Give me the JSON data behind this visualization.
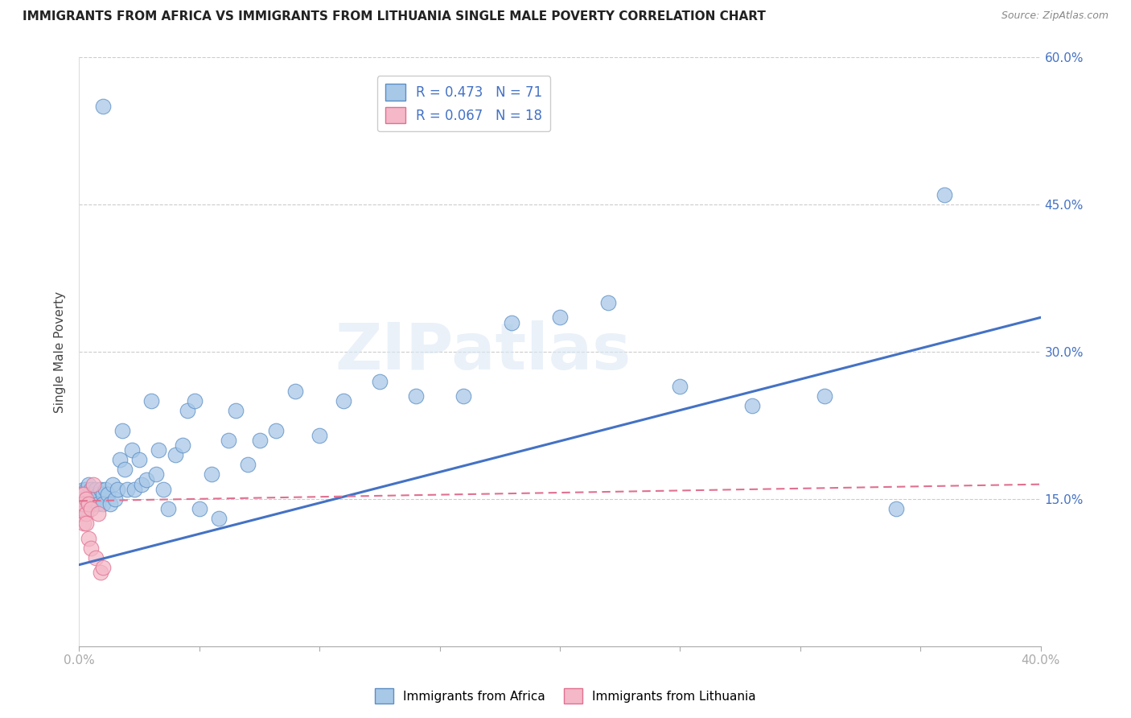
{
  "title": "IMMIGRANTS FROM AFRICA VS IMMIGRANTS FROM LITHUANIA SINGLE MALE POVERTY CORRELATION CHART",
  "source": "Source: ZipAtlas.com",
  "ylabel": "Single Male Poverty",
  "xlim": [
    0.0,
    0.4
  ],
  "ylim": [
    0.0,
    0.6
  ],
  "color_africa": "#a8c8e8",
  "color_africa_edge": "#5b8ec4",
  "color_lithuania": "#f4b8c8",
  "color_lithuania_edge": "#e07090",
  "color_africa_line": "#4472c4",
  "color_lithuania_line": "#e07090",
  "background_color": "#ffffff",
  "africa_x": [
    0.001,
    0.001,
    0.002,
    0.002,
    0.002,
    0.003,
    0.003,
    0.003,
    0.004,
    0.004,
    0.004,
    0.005,
    0.005,
    0.005,
    0.006,
    0.006,
    0.006,
    0.007,
    0.007,
    0.008,
    0.008,
    0.009,
    0.01,
    0.01,
    0.011,
    0.012,
    0.013,
    0.014,
    0.015,
    0.016,
    0.017,
    0.018,
    0.019,
    0.02,
    0.022,
    0.023,
    0.025,
    0.026,
    0.028,
    0.03,
    0.032,
    0.033,
    0.035,
    0.037,
    0.04,
    0.043,
    0.045,
    0.048,
    0.05,
    0.055,
    0.058,
    0.062,
    0.065,
    0.07,
    0.075,
    0.082,
    0.09,
    0.1,
    0.11,
    0.125,
    0.14,
    0.16,
    0.18,
    0.2,
    0.22,
    0.25,
    0.28,
    0.31,
    0.34,
    0.36,
    0.01
  ],
  "africa_y": [
    0.155,
    0.145,
    0.16,
    0.14,
    0.15,
    0.15,
    0.16,
    0.14,
    0.155,
    0.145,
    0.165,
    0.155,
    0.145,
    0.16,
    0.155,
    0.15,
    0.145,
    0.16,
    0.15,
    0.155,
    0.145,
    0.16,
    0.155,
    0.145,
    0.16,
    0.155,
    0.145,
    0.165,
    0.15,
    0.16,
    0.19,
    0.22,
    0.18,
    0.16,
    0.2,
    0.16,
    0.19,
    0.165,
    0.17,
    0.25,
    0.175,
    0.2,
    0.16,
    0.14,
    0.195,
    0.205,
    0.24,
    0.25,
    0.14,
    0.175,
    0.13,
    0.21,
    0.24,
    0.185,
    0.21,
    0.22,
    0.26,
    0.215,
    0.25,
    0.27,
    0.255,
    0.255,
    0.33,
    0.335,
    0.35,
    0.265,
    0.245,
    0.255,
    0.14,
    0.46,
    0.55
  ],
  "lithuania_x": [
    0.001,
    0.001,
    0.001,
    0.002,
    0.002,
    0.002,
    0.003,
    0.003,
    0.003,
    0.004,
    0.004,
    0.005,
    0.005,
    0.006,
    0.007,
    0.008,
    0.009,
    0.01
  ],
  "lithuania_y": [
    0.155,
    0.145,
    0.135,
    0.155,
    0.145,
    0.125,
    0.15,
    0.135,
    0.125,
    0.145,
    0.11,
    0.14,
    0.1,
    0.165,
    0.09,
    0.135,
    0.075,
    0.08
  ],
  "africa_line_x0": 0.0,
  "africa_line_y0": 0.083,
  "africa_line_x1": 0.4,
  "africa_line_y1": 0.335,
  "lith_line_x0": 0.0,
  "lith_line_y0": 0.148,
  "lith_line_x1": 0.4,
  "lith_line_y1": 0.165,
  "watermark": "ZIPatlas",
  "legend_label1": "R = 0.473   N = 71",
  "legend_label2": "R = 0.067   N = 18"
}
